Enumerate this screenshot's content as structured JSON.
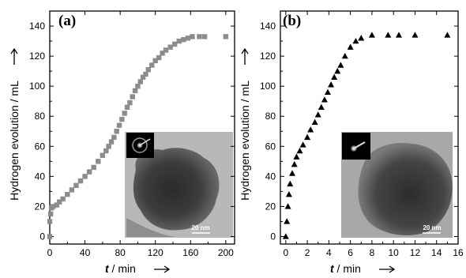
{
  "colors": {
    "panel_a_marker": "#8c8c8c",
    "panel_b_marker": "#000000",
    "axis": "#000000",
    "tem_dark": "#2e2e2e",
    "tem_light": "#b5b5b5"
  },
  "chart_data": [
    {
      "panel": "(a)",
      "type": "scatter",
      "marker": "square",
      "xlabel": "t / min",
      "ylabel": "Hydrogen evolution / mL",
      "xlim": [
        0,
        210
      ],
      "ylim": [
        -5,
        150
      ],
      "xticks": [
        0,
        40,
        80,
        120,
        160,
        200
      ],
      "yticks": [
        0,
        20,
        40,
        60,
        80,
        100,
        120,
        140
      ],
      "grid": false,
      "inset": {
        "content": "TEM micrograph with diffraction pattern",
        "scale_bar": "20 nm"
      },
      "x": [
        0,
        0,
        1,
        2,
        4,
        8,
        11,
        15,
        20,
        25,
        30,
        35,
        40,
        45,
        50,
        55,
        60,
        64,
        67,
        70,
        73,
        76,
        79,
        82,
        85,
        88,
        91,
        94,
        97,
        100,
        103,
        106,
        109,
        112,
        116,
        120,
        124,
        128,
        132,
        137,
        142,
        147,
        152,
        157,
        162,
        170,
        176,
        200
      ],
      "y": [
        0,
        10,
        15,
        19,
        20,
        21,
        23,
        25,
        28,
        31,
        34,
        37,
        40,
        43,
        46,
        50,
        54,
        57,
        60,
        63,
        66,
        70,
        74,
        78,
        82,
        86,
        89,
        93,
        97,
        100,
        103,
        106,
        108,
        111,
        114,
        117,
        119,
        122,
        124,
        126,
        128,
        130,
        131,
        132,
        133,
        133,
        133,
        133
      ]
    },
    {
      "panel": "(b)",
      "type": "scatter",
      "marker": "triangle",
      "xlabel": "t / min",
      "ylabel": "Hydrogen evolution / mL",
      "xlim": [
        -0.5,
        16
      ],
      "ylim": [
        -5,
        150
      ],
      "xticks": [
        0,
        2,
        4,
        6,
        8,
        10,
        12,
        14,
        16
      ],
      "yticks": [
        0,
        20,
        40,
        60,
        80,
        100,
        120,
        140
      ],
      "grid": false,
      "inset": {
        "content": "TEM micrograph with diffraction pattern",
        "scale_bar": "20 nm"
      },
      "x": [
        0,
        0.1,
        0.2,
        0.3,
        0.4,
        0.6,
        0.8,
        1.0,
        1.3,
        1.6,
        2.0,
        2.3,
        2.7,
        3.0,
        3.3,
        3.6,
        3.9,
        4.2,
        4.5,
        4.8,
        5.1,
        5.5,
        6.0,
        6.5,
        7.0,
        8.0,
        9.5,
        10.5,
        12.0,
        15.0
      ],
      "y": [
        0,
        10,
        20,
        28,
        35,
        42,
        48,
        53,
        57,
        61,
        66,
        71,
        76,
        81,
        86,
        91,
        96,
        101,
        106,
        110,
        114,
        120,
        126,
        130,
        132,
        134,
        134,
        134,
        134,
        134
      ]
    }
  ]
}
